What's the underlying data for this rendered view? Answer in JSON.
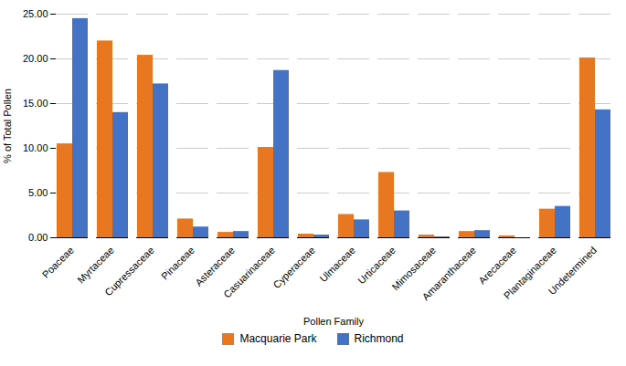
{
  "chart_data": {
    "type": "bar",
    "categories": [
      "Poaceae",
      "Myrtaceae",
      "Cupressaceae",
      "Pinaceae",
      "Asteraceae",
      "Casuarinaceae",
      "Cyperaceae",
      "Ulmaceae",
      "Urticaceae",
      "Mimosaceae",
      "Amaranthaceae",
      "Arecaceae",
      "Plantaginaceae",
      "Undetermined"
    ],
    "series": [
      {
        "name": "Macquarie Park",
        "color": "#E87722",
        "values": [
          10.5,
          22.0,
          20.4,
          2.1,
          0.6,
          10.1,
          0.4,
          2.6,
          7.3,
          0.3,
          0.7,
          0.2,
          3.2,
          20.1
        ]
      },
      {
        "name": "Richmond",
        "color": "#4472C4",
        "values": [
          24.5,
          14.0,
          17.2,
          1.2,
          0.7,
          18.7,
          0.3,
          2.0,
          3.0,
          0.1,
          0.8,
          0.0,
          3.5,
          14.3
        ]
      }
    ],
    "xlabel": "Pollen Family",
    "ylabel": "% of Total Pollen",
    "ylim": [
      0,
      25.0
    ],
    "yticks": [
      {
        "value": 0,
        "label": "0.00"
      },
      {
        "value": 5,
        "label": "5.00"
      },
      {
        "value": 10,
        "label": "10.00"
      },
      {
        "value": 15,
        "label": "15.00"
      },
      {
        "value": 20,
        "label": "20.00"
      },
      {
        "value": 25,
        "label": "25.00"
      }
    ],
    "grid": true,
    "legend": "bottom"
  }
}
